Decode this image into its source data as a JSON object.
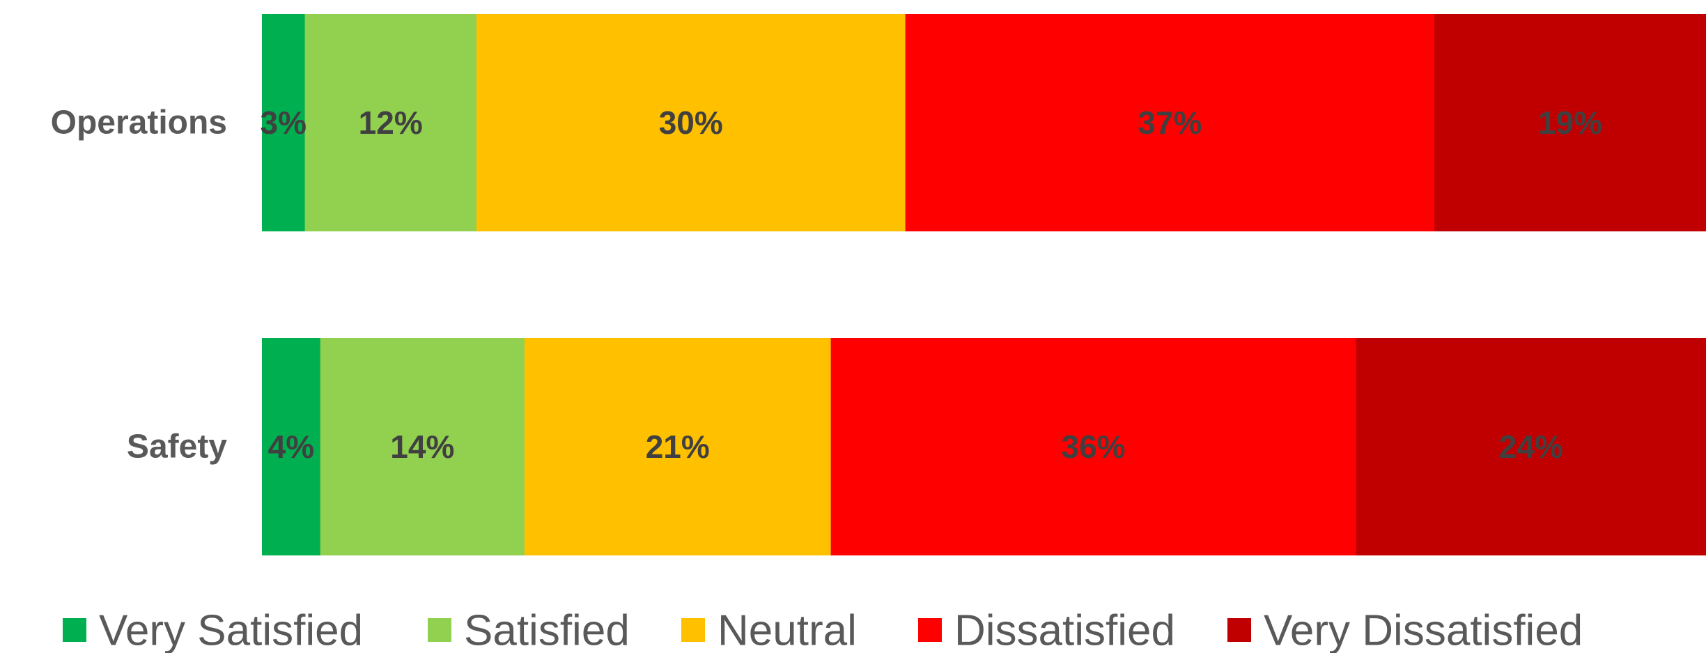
{
  "chart_data": {
    "type": "bar",
    "orientation": "horizontal",
    "stacked": true,
    "categories": [
      "Operations",
      "Safety"
    ],
    "series": [
      {
        "name": "Very Satisfied",
        "color": "#00B050",
        "values": [
          3,
          4
        ]
      },
      {
        "name": "Satisfied",
        "color": "#92D050",
        "values": [
          12,
          14
        ]
      },
      {
        "name": "Neutral",
        "color": "#FFC000",
        "values": [
          30,
          21
        ]
      },
      {
        "name": "Dissatisfied",
        "color": "#FF0000",
        "values": [
          37,
          36
        ]
      },
      {
        "name": "Very Dissatisfied",
        "color": "#C00000",
        "values": [
          19,
          24
        ]
      }
    ],
    "data_labels": [
      [
        "3%",
        "12%",
        "30%",
        "37%",
        "19%"
      ],
      [
        "4%",
        "14%",
        "21%",
        "36%",
        "24%"
      ]
    ],
    "title": "",
    "xlabel": "",
    "ylabel": "",
    "grid": false,
    "legend_position": "bottom"
  }
}
